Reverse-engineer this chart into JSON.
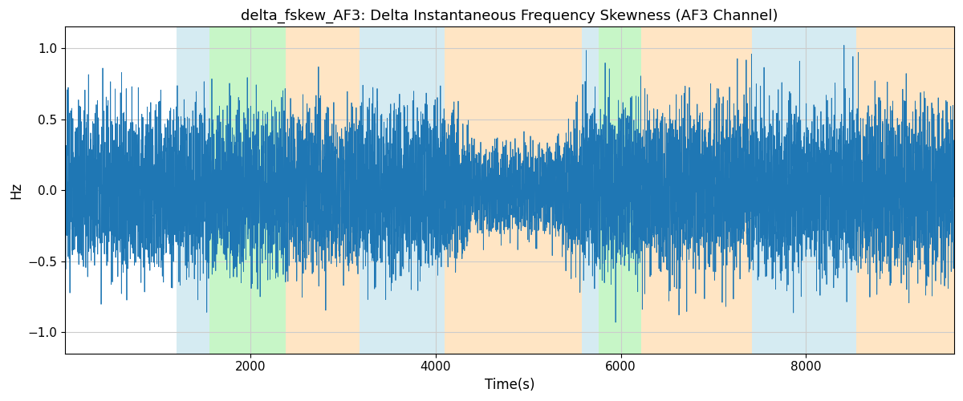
{
  "title": "delta_fskew_AF3: Delta Instantaneous Frequency Skewness (AF3 Channel)",
  "xlabel": "Time(s)",
  "ylabel": "Hz",
  "xlim": [
    0,
    9600
  ],
  "ylim": [
    -1.15,
    1.15
  ],
  "line_color": "#1f77b4",
  "line_width": 0.6,
  "title_fontsize": 13,
  "label_fontsize": 12,
  "tick_fontsize": 11,
  "bg_regions": [
    {
      "xstart": 1200,
      "xend": 1560,
      "color": "#add8e6",
      "alpha": 0.5
    },
    {
      "xstart": 1560,
      "xend": 2380,
      "color": "#90ee90",
      "alpha": 0.5
    },
    {
      "xstart": 2380,
      "xend": 3180,
      "color": "#ffd59e",
      "alpha": 0.6
    },
    {
      "xstart": 3180,
      "xend": 3680,
      "color": "#add8e6",
      "alpha": 0.5
    },
    {
      "xstart": 3680,
      "xend": 4100,
      "color": "#add8e6",
      "alpha": 0.5
    },
    {
      "xstart": 4100,
      "xend": 5580,
      "color": "#ffd59e",
      "alpha": 0.6
    },
    {
      "xstart": 5580,
      "xend": 5760,
      "color": "#add8e6",
      "alpha": 0.5
    },
    {
      "xstart": 5760,
      "xend": 6220,
      "color": "#90ee90",
      "alpha": 0.5
    },
    {
      "xstart": 6220,
      "xend": 7420,
      "color": "#ffd59e",
      "alpha": 0.6
    },
    {
      "xstart": 7420,
      "xend": 8120,
      "color": "#add8e6",
      "alpha": 0.5
    },
    {
      "xstart": 8120,
      "xend": 8540,
      "color": "#add8e6",
      "alpha": 0.5
    },
    {
      "xstart": 8540,
      "xend": 9600,
      "color": "#ffd59e",
      "alpha": 0.6
    }
  ],
  "xticks": [
    2000,
    4000,
    6000,
    8000
  ],
  "yticks": [
    -1.0,
    -0.5,
    0.0,
    0.5,
    1.0
  ],
  "seed": 42,
  "num_points": 9500,
  "total_time": 9600
}
